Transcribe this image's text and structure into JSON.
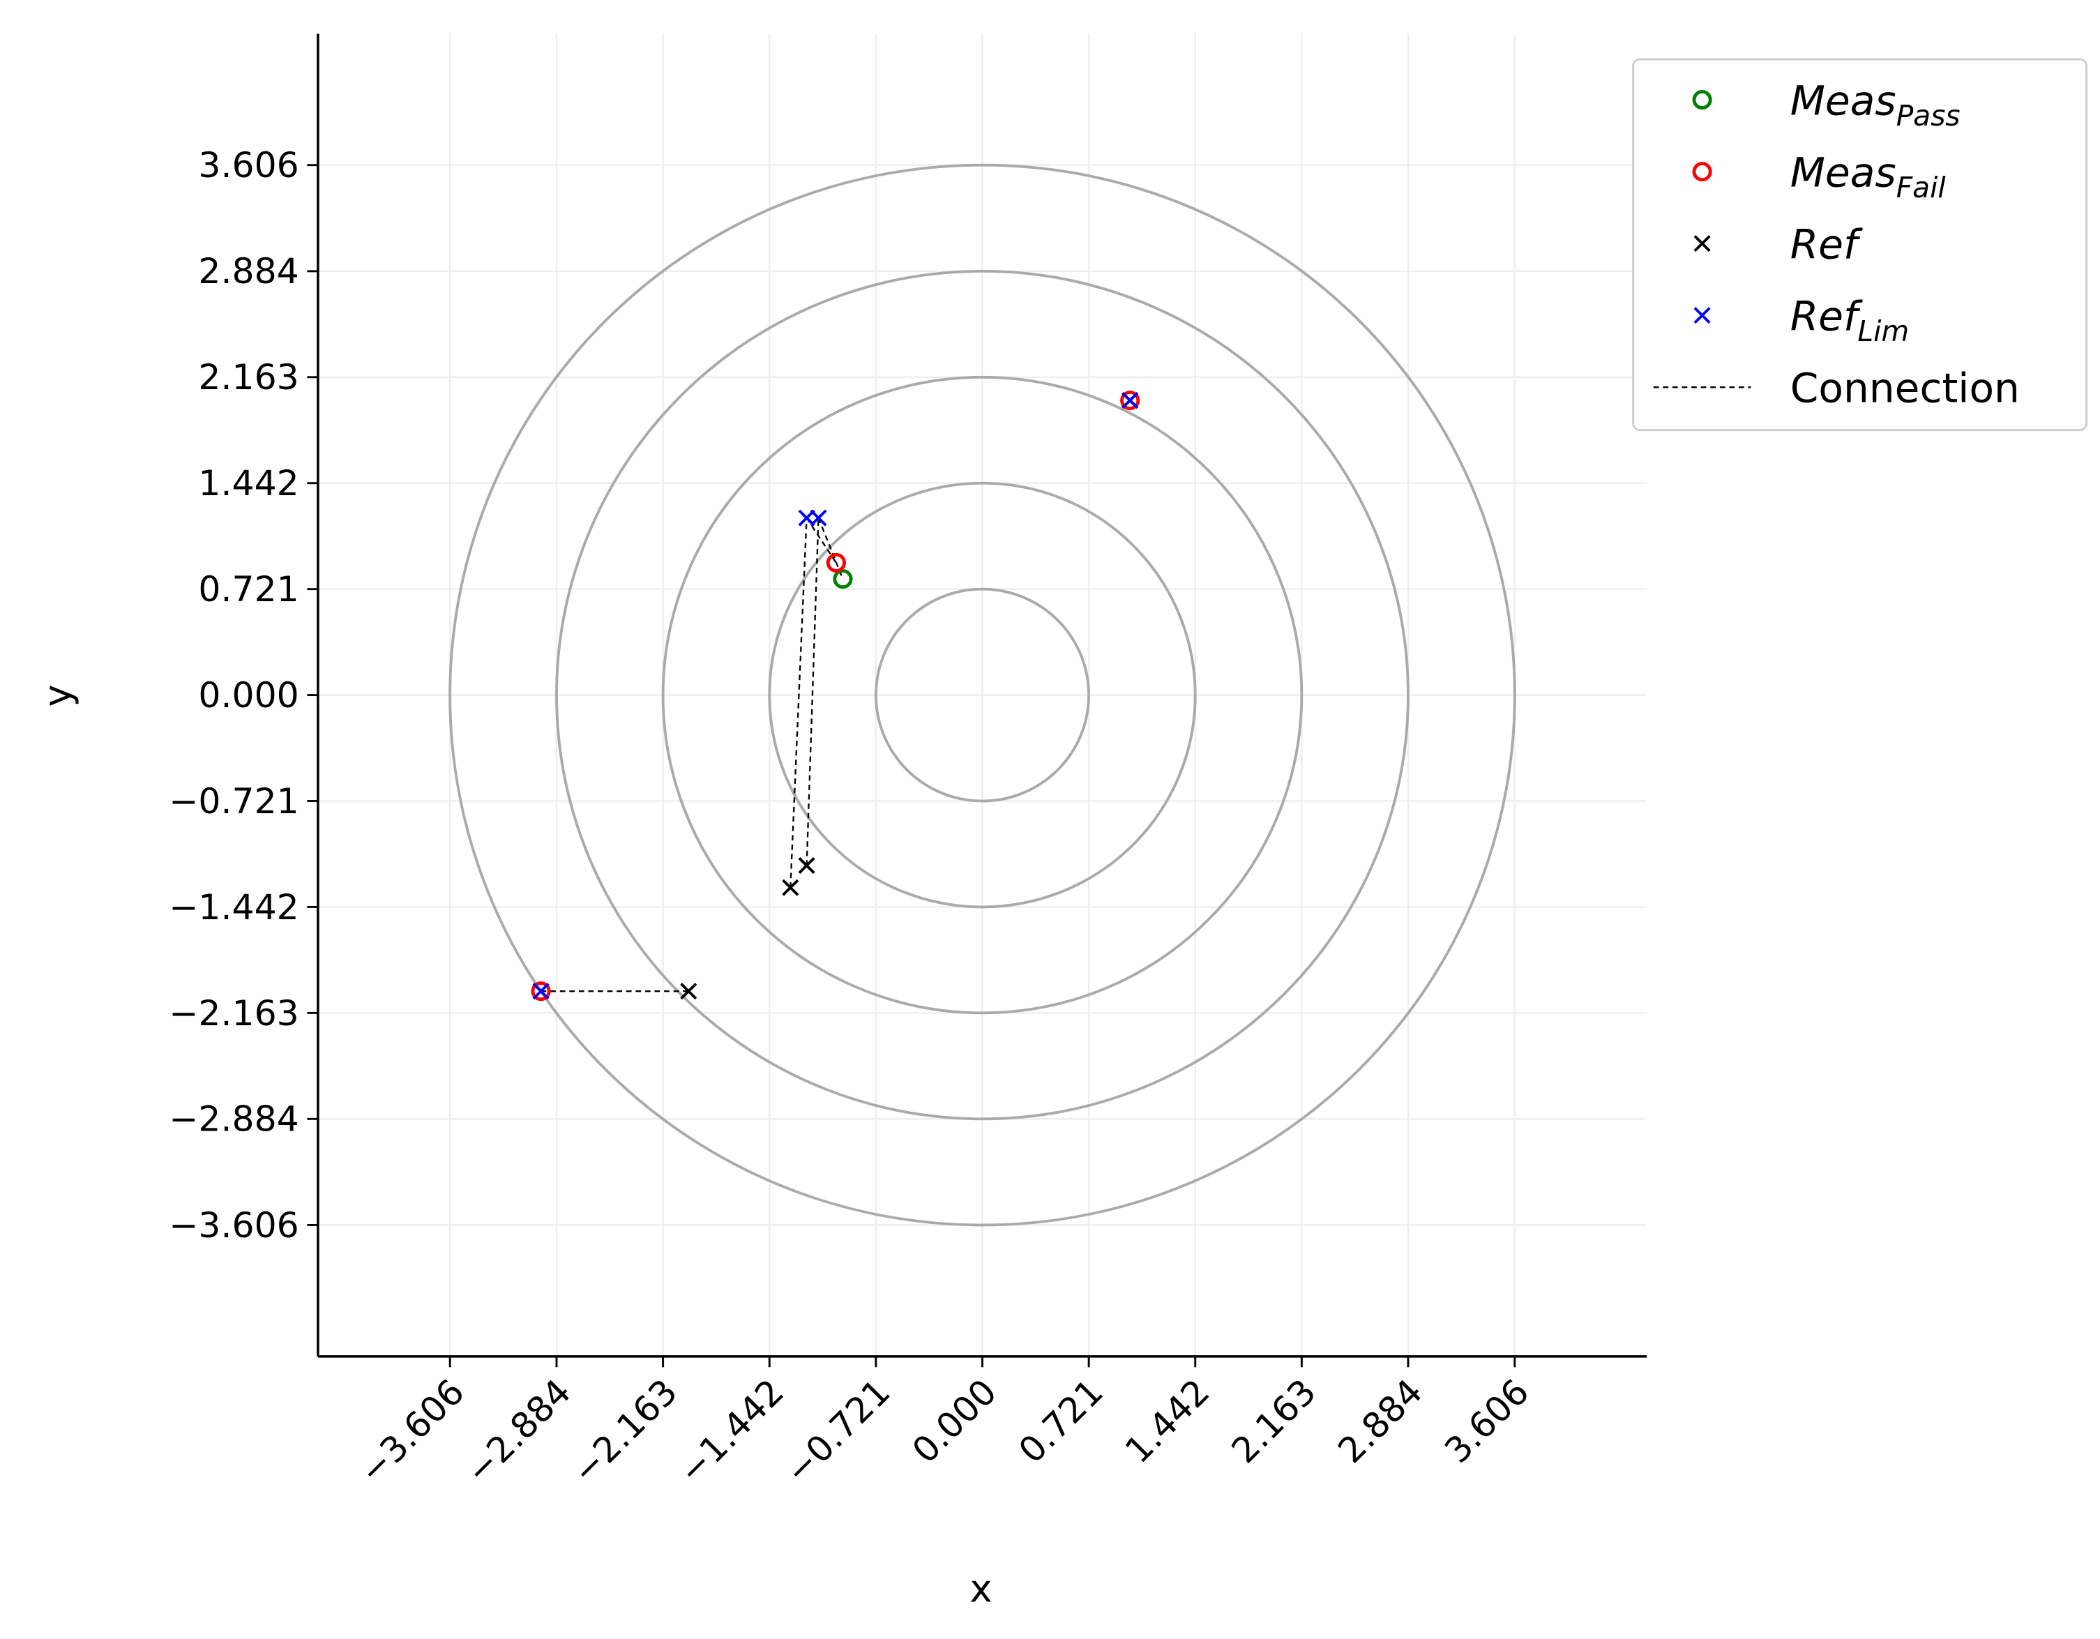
{
  "chart_data": {
    "type": "scatter",
    "xlabel": "x",
    "ylabel": "y",
    "xlim": [
      -4.5,
      4.5
    ],
    "ylim": [
      -4.5,
      4.5
    ],
    "xticks": [
      {
        "value": -3.606,
        "label": "−3.606"
      },
      {
        "value": -2.884,
        "label": "−2.884"
      },
      {
        "value": -2.163,
        "label": "−2.163"
      },
      {
        "value": -1.442,
        "label": "−1.442"
      },
      {
        "value": -0.721,
        "label": "−0.721"
      },
      {
        "value": 0,
        "label": "0.000"
      },
      0.721,
      1.442,
      2.163,
      2.884,
      3.606
    ],
    "yticks": [
      {
        "value": -3.606,
        "label": "−3.606"
      },
      {
        "value": -2.884,
        "label": "−2.884"
      },
      {
        "value": -2.163,
        "label": "−2.163"
      },
      {
        "value": -1.442,
        "label": "−1.442"
      },
      {
        "value": -0.721,
        "label": "−0.721"
      },
      {
        "value": 0,
        "label": "0.000"
      },
      0.721,
      1.442,
      2.163,
      2.884,
      3.606
    ],
    "grid": true,
    "circles": [
      0.721,
      1.442,
      2.163,
      2.884,
      3.606
    ],
    "circle_color": "#aaaaaa",
    "legend": "upper right outside",
    "series": [
      {
        "name": "Meas",
        "subscript": "Pass",
        "marker": "o",
        "color": "#008000",
        "x": [
          -0.945
        ],
        "y": [
          0.79
        ]
      },
      {
        "name": "Meas",
        "subscript": "Fail",
        "marker": "o",
        "color": "#ff0000",
        "x": [
          -0.99,
          1.0,
          -2.99
        ],
        "y": [
          0.9,
          2.005,
          -2.015
        ]
      },
      {
        "name": "Ref",
        "marker": "x",
        "color": "#000000",
        "x": [
          1.0,
          -1.3,
          -1.19,
          -1.99
        ],
        "y": [
          2.005,
          -1.31,
          -1.16,
          -2.015
        ]
      },
      {
        "name": "Ref",
        "subscript": "Lim",
        "marker": "x",
        "color": "#0000ff",
        "x": [
          1.0,
          -1.19,
          -1.11,
          -2.99
        ],
        "y": [
          2.005,
          1.205,
          1.205,
          -2.015
        ]
      },
      {
        "name": "Connection",
        "marker": "dashed",
        "color": "#000000",
        "x": [
          -2.99,
          -1.99,
          null,
          -1.3,
          -1.19,
          null,
          -1.19,
          -1.11,
          null,
          -1.19,
          -0.99,
          null,
          -1.11,
          -0.945
        ],
        "y": [
          -2.015,
          -2.015,
          null,
          -1.31,
          1.205,
          null,
          -1.16,
          1.205,
          null,
          1.205,
          0.9,
          null,
          1.205,
          0.79
        ]
      }
    ]
  }
}
